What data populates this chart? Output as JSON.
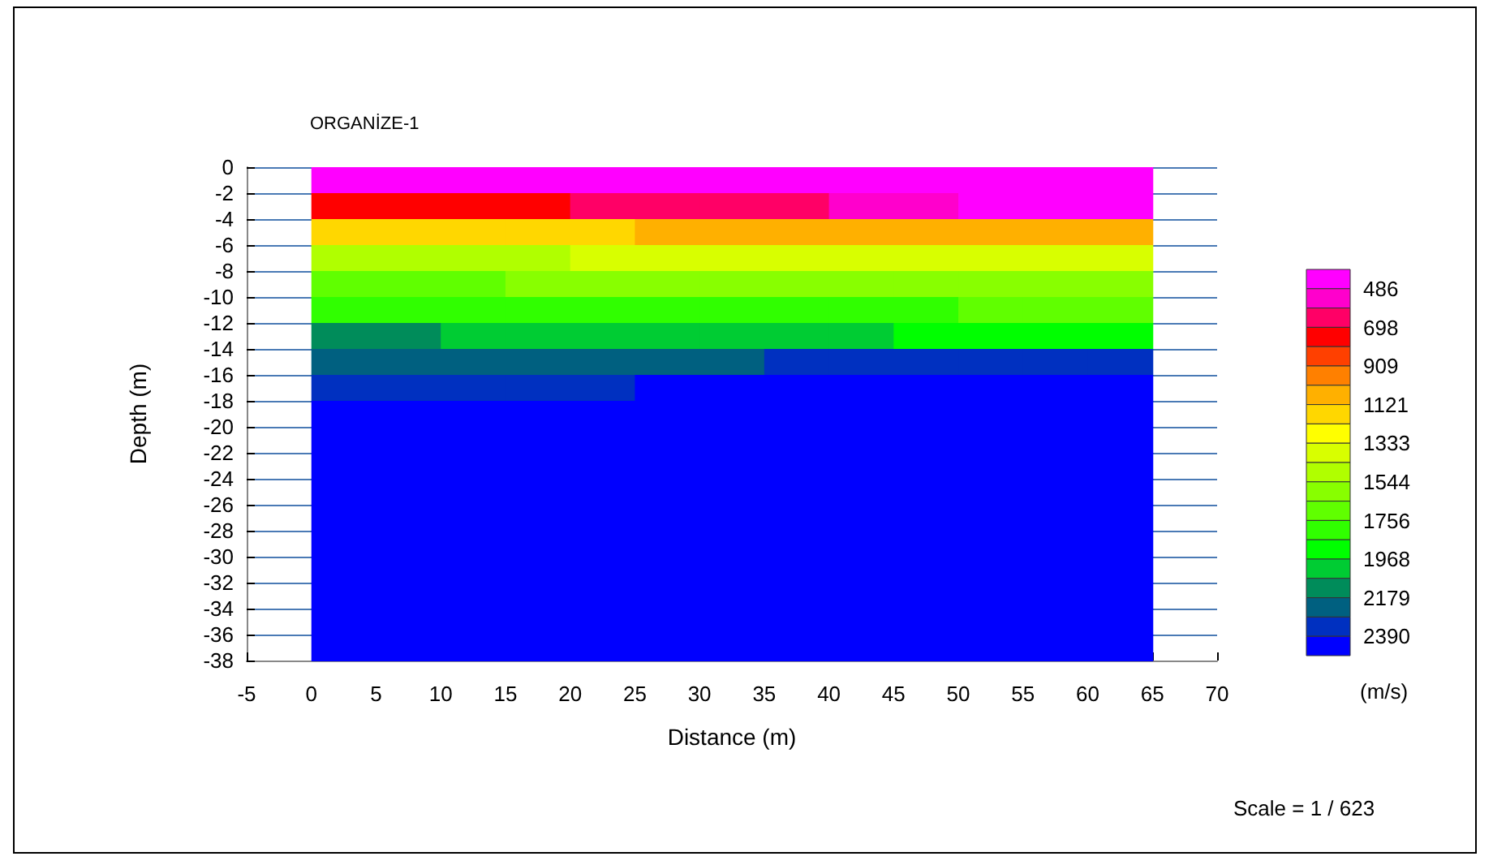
{
  "chart_data": {
    "type": "heatmap",
    "title": "ORGANİZE-1",
    "xlabel": "Distance (m)",
    "ylabel": "Depth (m)",
    "clabel": "(m/s)",
    "annotations": [
      "Scale = 1 / 623"
    ],
    "x": [
      2.5,
      7.5,
      12.5,
      17.5,
      22.5,
      27.5,
      32.5,
      37.5,
      42.5,
      47.5,
      52.5,
      57.5,
      62.5
    ],
    "cells": [
      [
        430,
        430,
        430,
        430,
        430,
        430,
        430,
        430,
        430,
        430,
        430,
        430,
        430
      ],
      [
        720,
        720,
        720,
        700,
        680,
        650,
        620,
        600,
        560,
        520,
        480,
        460,
        450
      ],
      [
        1150,
        1150,
        1150,
        1140,
        1130,
        1120,
        1110,
        1100,
        1100,
        1100,
        1100,
        1100,
        1100
      ],
      [
        1450,
        1450,
        1450,
        1440,
        1420,
        1400,
        1390,
        1380,
        1370,
        1360,
        1350,
        1350,
        1350
      ],
      [
        1650,
        1650,
        1650,
        1640,
        1620,
        1600,
        1590,
        1580,
        1570,
        1560,
        1550,
        1550,
        1550
      ],
      [
        1820,
        1820,
        1820,
        1810,
        1800,
        1790,
        1780,
        1770,
        1760,
        1760,
        1750,
        1750,
        1750
      ],
      [
        2080,
        2080,
        2070,
        2060,
        2050,
        2040,
        2020,
        2000,
        1980,
        1960,
        1950,
        1940,
        1930
      ],
      [
        2260,
        2260,
        2260,
        2250,
        2250,
        2260,
        2280,
        2300,
        2320,
        2340,
        2350,
        2360,
        2360
      ],
      [
        2360,
        2360,
        2360,
        2360,
        2370,
        2400,
        2420,
        2450,
        2450,
        2450,
        2450,
        2450,
        2450
      ],
      [
        2400,
        2400,
        2400,
        2400,
        2410,
        2430,
        2450,
        2450,
        2450,
        2450,
        2450,
        2450,
        2450
      ],
      [
        2450,
        2450,
        2450,
        2450,
        2450,
        2450,
        2450,
        2450,
        2450,
        2450,
        2450,
        2450,
        2450
      ],
      [
        2450,
        2450,
        2450,
        2450,
        2450,
        2450,
        2450,
        2450,
        2450,
        2450,
        2450,
        2450,
        2450
      ],
      [
        2450,
        2450,
        2450,
        2450,
        2450,
        2450,
        2450,
        2450,
        2450,
        2450,
        2450,
        2450,
        2450
      ],
      [
        2450,
        2450,
        2450,
        2450,
        2450,
        2450,
        2450,
        2450,
        2450,
        2450,
        2450,
        2450,
        2450
      ],
      [
        2450,
        2450,
        2450,
        2450,
        2450,
        2450,
        2450,
        2450,
        2450,
        2450,
        2450,
        2450,
        2450
      ],
      [
        2450,
        2450,
        2450,
        2450,
        2450,
        2450,
        2450,
        2450,
        2450,
        2450,
        2450,
        2450,
        2450
      ],
      [
        2450,
        2450,
        2450,
        2450,
        2450,
        2450,
        2450,
        2450,
        2450,
        2450,
        2450,
        2450,
        2450
      ],
      [
        2450,
        2450,
        2450,
        2450,
        2450,
        2450,
        2450,
        2450,
        2450,
        2450,
        2450,
        2450,
        2450
      ],
      [
        2450,
        2450,
        2450,
        2450,
        2450,
        2450,
        2450,
        2450,
        2450,
        2450,
        2450,
        2450,
        2450
      ]
    ],
    "colors": [
      "#ff00ff",
      "#ff00cc",
      "#ff0066",
      "#ff0000",
      "#ff4000",
      "#ff8000",
      "#ffb000",
      "#ffd700",
      "#ffff00",
      "#d8ff00",
      "#b0ff00",
      "#88ff00",
      "#60ff00",
      "#30ff00",
      "#00ff00",
      "#00cc33",
      "#008c5a",
      "#006080",
      "#0030c0",
      "#0000ff"
    ],
    "clim": [
      380,
      2496
    ],
    "cticks": [
      486,
      698,
      909,
      1121,
      1333,
      1544,
      1756,
      1968,
      2179,
      2390
    ],
    "xlim": [
      -5,
      70
    ],
    "xticks": [
      -5,
      0,
      5,
      10,
      15,
      20,
      25,
      30,
      35,
      40,
      45,
      50,
      55,
      60,
      65,
      70
    ],
    "ylim": [
      -38,
      0
    ],
    "yticks": [
      0,
      -2,
      -4,
      -6,
      -8,
      -10,
      -12,
      -14,
      -16,
      -18,
      -20,
      -22,
      -24,
      -26,
      -28,
      -30,
      -32,
      -34,
      -36,
      -38
    ],
    "grid": "y"
  }
}
